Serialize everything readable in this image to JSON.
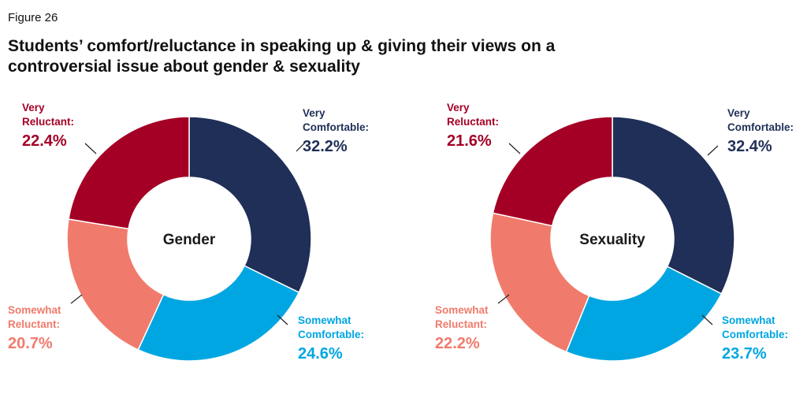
{
  "figure_label": "Figure 26",
  "title": "Students’ comfort/reluctance in speaking up & giving their views on a controversial issue about gender & sexuality",
  "colors": {
    "very_comfortable": "#1f2f57",
    "somewhat_comfortable": "#00a6e2",
    "somewhat_reluctant": "#f07b6c",
    "very_reluctant": "#a40025"
  },
  "chart_data": [
    {
      "type": "pie",
      "center_label": "Gender",
      "slices": [
        {
          "label_line1": "Very",
          "label_line2": "Comfortable:",
          "value": 32.2,
          "value_text": "32.2%",
          "color_key": "very_comfortable"
        },
        {
          "label_line1": "Somewhat",
          "label_line2": "Comfortable:",
          "value": 24.6,
          "value_text": "24.6%",
          "color_key": "somewhat_comfortable"
        },
        {
          "label_line1": "Somewhat",
          "label_line2": "Reluctant:",
          "value": 20.7,
          "value_text": "20.7%",
          "color_key": "somewhat_reluctant"
        },
        {
          "label_line1": "Very",
          "label_line2": "Reluctant:",
          "value": 22.4,
          "value_text": "22.4%",
          "color_key": "very_reluctant"
        }
      ]
    },
    {
      "type": "pie",
      "center_label": "Sexuality",
      "slices": [
        {
          "label_line1": "Very",
          "label_line2": "Comfortable:",
          "value": 32.4,
          "value_text": "32.4%",
          "color_key": "very_comfortable"
        },
        {
          "label_line1": "Somewhat",
          "label_line2": "Comfortable:",
          "value": 23.7,
          "value_text": "23.7%",
          "color_key": "somewhat_comfortable"
        },
        {
          "label_line1": "Somewhat",
          "label_line2": "Reluctant:",
          "value": 22.2,
          "value_text": "22.2%",
          "color_key": "somewhat_reluctant"
        },
        {
          "label_line1": "Very",
          "label_line2": "Reluctant:",
          "value": 21.6,
          "value_text": "21.6%",
          "color_key": "very_reluctant"
        }
      ]
    }
  ]
}
